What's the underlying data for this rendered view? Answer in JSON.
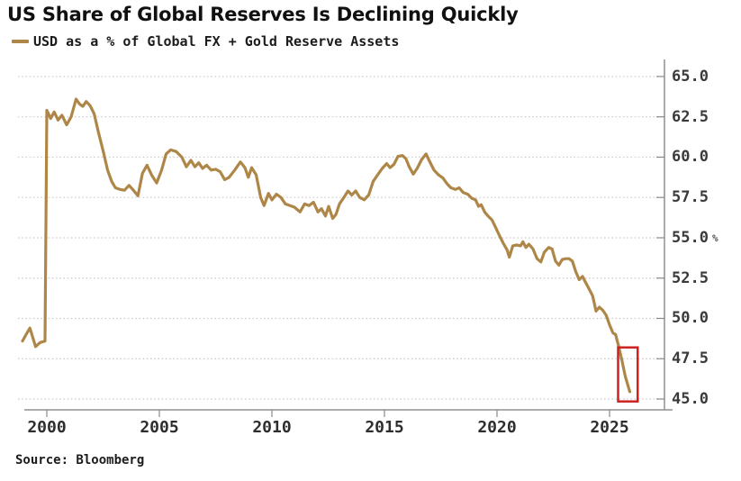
{
  "title": "US Share of Global Reserves Is Declining Quickly",
  "legend": {
    "label": "USD as a % of Global FX + Gold Reserve Assets"
  },
  "source": "Source: Bloomberg",
  "colors": {
    "line": "#AE8748",
    "highlight": "#CC2222",
    "grid": "#cbcbcb",
    "axis": "#909090",
    "tick": "#8a8a8a"
  },
  "chart_data": {
    "type": "line",
    "title": "US Share of Global Reserves Is Declining Quickly",
    "xlabel": "",
    "ylabel": "",
    "legend_position": "top-left",
    "y_axis_side": "right",
    "grid": "horizontal-dotted",
    "x_ticks": [
      2000,
      2005,
      2010,
      2015,
      2020,
      2025
    ],
    "y_ticks": [
      45.0,
      47.5,
      50.0,
      52.5,
      55.0,
      57.5,
      60.0,
      62.5,
      65.0
    ],
    "y_axis_unit": "%",
    "y_axis_unit_at": 55.0,
    "xlim": [
      1998.72,
      2027.44
    ],
    "ylim": [
      44.33,
      65.89
    ],
    "annotations": [
      {
        "type": "rect",
        "x0": 2025.38,
        "x1": 2026.25,
        "y0": 44.85,
        "y1": 48.2,
        "meaning": "highlight-latest-decline"
      }
    ],
    "series": [
      {
        "name": "USD as a % of Global FX + Gold Reserve Assets",
        "points": [
          [
            1998.92,
            48.6
          ],
          [
            1999.08,
            49.0
          ],
          [
            1999.25,
            49.4
          ],
          [
            1999.5,
            48.25
          ],
          [
            1999.7,
            48.5
          ],
          [
            1999.92,
            48.6
          ],
          [
            2000.0,
            62.9
          ],
          [
            2000.17,
            62.4
          ],
          [
            2000.33,
            62.8
          ],
          [
            2000.5,
            62.3
          ],
          [
            2000.67,
            62.6
          ],
          [
            2000.88,
            62.0
          ],
          [
            2001.08,
            62.5
          ],
          [
            2001.3,
            63.6
          ],
          [
            2001.45,
            63.3
          ],
          [
            2001.6,
            63.15
          ],
          [
            2001.75,
            63.45
          ],
          [
            2001.92,
            63.2
          ],
          [
            2002.1,
            62.7
          ],
          [
            2002.3,
            61.5
          ],
          [
            2002.5,
            60.4
          ],
          [
            2002.7,
            59.2
          ],
          [
            2002.88,
            58.5
          ],
          [
            2003.05,
            58.1
          ],
          [
            2003.25,
            58.0
          ],
          [
            2003.45,
            57.95
          ],
          [
            2003.65,
            58.25
          ],
          [
            2003.85,
            57.95
          ],
          [
            2004.05,
            57.6
          ],
          [
            2004.25,
            59.0
          ],
          [
            2004.45,
            59.5
          ],
          [
            2004.65,
            58.9
          ],
          [
            2004.88,
            58.4
          ],
          [
            2005.1,
            59.2
          ],
          [
            2005.3,
            60.2
          ],
          [
            2005.5,
            60.45
          ],
          [
            2005.75,
            60.35
          ],
          [
            2006.0,
            60.0
          ],
          [
            2006.2,
            59.4
          ],
          [
            2006.4,
            59.8
          ],
          [
            2006.58,
            59.4
          ],
          [
            2006.75,
            59.65
          ],
          [
            2006.92,
            59.3
          ],
          [
            2007.1,
            59.5
          ],
          [
            2007.3,
            59.2
          ],
          [
            2007.5,
            59.25
          ],
          [
            2007.7,
            59.1
          ],
          [
            2007.9,
            58.6
          ],
          [
            2008.1,
            58.75
          ],
          [
            2008.35,
            59.2
          ],
          [
            2008.6,
            59.7
          ],
          [
            2008.8,
            59.35
          ],
          [
            2008.95,
            58.75
          ],
          [
            2009.1,
            59.35
          ],
          [
            2009.3,
            58.9
          ],
          [
            2009.5,
            57.5
          ],
          [
            2009.65,
            57.0
          ],
          [
            2009.85,
            57.75
          ],
          [
            2010.0,
            57.35
          ],
          [
            2010.2,
            57.7
          ],
          [
            2010.4,
            57.5
          ],
          [
            2010.6,
            57.1
          ],
          [
            2010.8,
            57.0
          ],
          [
            2011.0,
            56.9
          ],
          [
            2011.25,
            56.6
          ],
          [
            2011.45,
            57.1
          ],
          [
            2011.65,
            57.0
          ],
          [
            2011.85,
            57.2
          ],
          [
            2012.05,
            56.6
          ],
          [
            2012.2,
            56.8
          ],
          [
            2012.38,
            56.35
          ],
          [
            2012.52,
            56.95
          ],
          [
            2012.7,
            56.2
          ],
          [
            2012.85,
            56.45
          ],
          [
            2013.0,
            57.1
          ],
          [
            2013.2,
            57.5
          ],
          [
            2013.38,
            57.9
          ],
          [
            2013.55,
            57.65
          ],
          [
            2013.72,
            57.9
          ],
          [
            2013.9,
            57.5
          ],
          [
            2014.1,
            57.35
          ],
          [
            2014.3,
            57.65
          ],
          [
            2014.5,
            58.5
          ],
          [
            2014.7,
            58.9
          ],
          [
            2014.9,
            59.3
          ],
          [
            2015.1,
            59.6
          ],
          [
            2015.25,
            59.35
          ],
          [
            2015.42,
            59.55
          ],
          [
            2015.6,
            60.05
          ],
          [
            2015.8,
            60.1
          ],
          [
            2015.95,
            59.9
          ],
          [
            2016.1,
            59.4
          ],
          [
            2016.28,
            58.95
          ],
          [
            2016.45,
            59.3
          ],
          [
            2016.65,
            59.85
          ],
          [
            2016.85,
            60.2
          ],
          [
            2017.0,
            59.75
          ],
          [
            2017.2,
            59.2
          ],
          [
            2017.4,
            58.9
          ],
          [
            2017.6,
            58.7
          ],
          [
            2017.78,
            58.35
          ],
          [
            2017.95,
            58.1
          ],
          [
            2018.15,
            58.0
          ],
          [
            2018.32,
            58.1
          ],
          [
            2018.5,
            57.8
          ],
          [
            2018.7,
            57.7
          ],
          [
            2018.88,
            57.45
          ],
          [
            2019.05,
            57.35
          ],
          [
            2019.18,
            56.95
          ],
          [
            2019.3,
            57.05
          ],
          [
            2019.45,
            56.6
          ],
          [
            2019.6,
            56.35
          ],
          [
            2019.78,
            56.1
          ],
          [
            2019.95,
            55.6
          ],
          [
            2020.12,
            55.1
          ],
          [
            2020.3,
            54.6
          ],
          [
            2020.45,
            54.25
          ],
          [
            2020.55,
            53.8
          ],
          [
            2020.7,
            54.5
          ],
          [
            2020.88,
            54.55
          ],
          [
            2021.05,
            54.5
          ],
          [
            2021.15,
            54.75
          ],
          [
            2021.28,
            54.4
          ],
          [
            2021.42,
            54.6
          ],
          [
            2021.6,
            54.3
          ],
          [
            2021.78,
            53.7
          ],
          [
            2021.95,
            53.5
          ],
          [
            2022.1,
            54.1
          ],
          [
            2022.3,
            54.4
          ],
          [
            2022.45,
            54.3
          ],
          [
            2022.6,
            53.55
          ],
          [
            2022.75,
            53.3
          ],
          [
            2022.9,
            53.65
          ],
          [
            2023.05,
            53.7
          ],
          [
            2023.2,
            53.7
          ],
          [
            2023.35,
            53.55
          ],
          [
            2023.5,
            52.9
          ],
          [
            2023.65,
            52.4
          ],
          [
            2023.8,
            52.6
          ],
          [
            2023.95,
            52.2
          ],
          [
            2024.1,
            51.8
          ],
          [
            2024.25,
            51.4
          ],
          [
            2024.4,
            50.45
          ],
          [
            2024.55,
            50.7
          ],
          [
            2024.7,
            50.5
          ],
          [
            2024.85,
            50.2
          ],
          [
            2025.0,
            49.6
          ],
          [
            2025.15,
            49.1
          ],
          [
            2025.27,
            49.0
          ],
          [
            2025.4,
            48.3
          ],
          [
            2025.55,
            47.4
          ],
          [
            2025.7,
            46.4
          ],
          [
            2025.9,
            45.45
          ]
        ]
      }
    ]
  }
}
